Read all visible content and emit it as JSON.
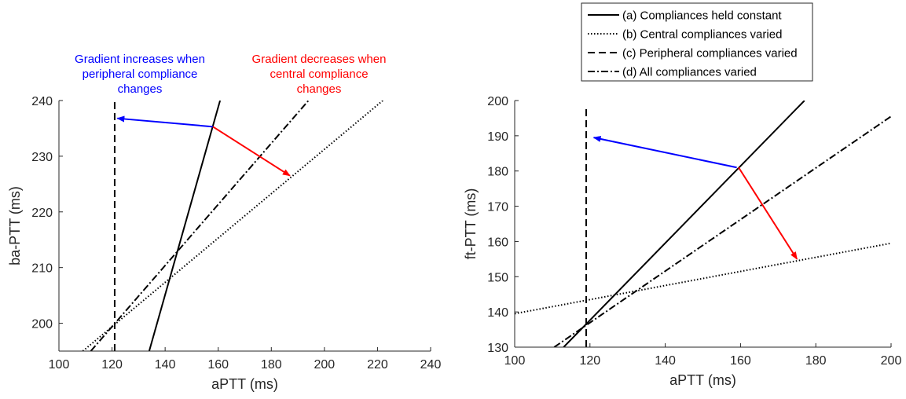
{
  "chart_data": [
    {
      "type": "line",
      "panel": "left",
      "xlabel": "aPTT (ms)",
      "ylabel": "ba-PTT (ms)",
      "xlim": [
        100,
        240
      ],
      "ylim": [
        195,
        240
      ],
      "xticks": [
        "100",
        "120",
        "140",
        "160",
        "180",
        "200",
        "220",
        "240"
      ],
      "yticks": [
        "200",
        "210",
        "220",
        "230",
        "240"
      ],
      "grid": false,
      "series": [
        {
          "name": "(a) Compliances held constant",
          "style": "solid",
          "x": [
            134,
            160.7
          ],
          "y": [
            195,
            240
          ]
        },
        {
          "name": "(b) Central compliances varied",
          "style": "dotted",
          "x": [
            109,
            222
          ],
          "y": [
            195,
            240
          ]
        },
        {
          "name": "(c) Peripheral compliances varied",
          "style": "dashed",
          "x": [
            121,
            121
          ],
          "y": [
            195,
            240
          ]
        },
        {
          "name": "(d) All compliances varied",
          "style": "dashdot",
          "x": [
            112,
            194
          ],
          "y": [
            195,
            240
          ]
        }
      ],
      "arrows": [
        {
          "color": "#0000ff",
          "from": [
            158,
            235.3
          ],
          "to": [
            122,
            236.8
          ]
        },
        {
          "color": "#ff0000",
          "from": [
            158,
            235.3
          ],
          "to": [
            187,
            226.5
          ]
        }
      ],
      "annotations": [
        {
          "color": "#0000ff",
          "lines": [
            "Gradient increases when",
            "peripheral compliance",
            "changes"
          ]
        },
        {
          "color": "#ff0000",
          "lines": [
            "Gradient decreases when",
            "central compliance",
            "changes"
          ]
        }
      ]
    },
    {
      "type": "line",
      "panel": "right",
      "xlabel": "aPTT (ms)",
      "ylabel": "ft-PTT (ms)",
      "xlim": [
        100,
        200
      ],
      "ylim": [
        130,
        200
      ],
      "xticks": [
        "100",
        "120",
        "140",
        "160",
        "180",
        "200"
      ],
      "yticks": [
        "130",
        "140",
        "150",
        "160",
        "170",
        "180",
        "190",
        "200"
      ],
      "grid": false,
      "legend_position": "top",
      "series": [
        {
          "name": "(a) Compliances held constant",
          "style": "solid",
          "x": [
            113,
            177
          ],
          "y": [
            130,
            200
          ]
        },
        {
          "name": "(b) Central compliances varied",
          "style": "dotted",
          "x": [
            100,
            200
          ],
          "y": [
            139.5,
            159.5
          ]
        },
        {
          "name": "(c) Peripheral compliances varied",
          "style": "dashed",
          "x": [
            119,
            119
          ],
          "y": [
            130,
            198
          ]
        },
        {
          "name": "(d) All compliances varied",
          "style": "dashdot",
          "x": [
            110.5,
            200
          ],
          "y": [
            130,
            195.5
          ]
        }
      ],
      "arrows": [
        {
          "color": "#0000ff",
          "from": [
            159,
            181
          ],
          "to": [
            121,
            189.5
          ]
        },
        {
          "color": "#ff0000",
          "from": [
            159.5,
            181
          ],
          "to": [
            175,
            155
          ]
        }
      ]
    }
  ],
  "legend": {
    "entries": [
      {
        "label": "(a) Compliances held constant",
        "style": "solid"
      },
      {
        "label": "(b) Central compliances varied",
        "style": "dotted"
      },
      {
        "label": "(c) Peripheral compliances varied",
        "style": "dashed"
      },
      {
        "label": "(d) All compliances varied",
        "style": "dashdot"
      }
    ]
  },
  "colors": {
    "increase_arrow": "#0000ff",
    "decrease_arrow": "#ff0000",
    "lines": "#000000",
    "axes": "#262626"
  }
}
